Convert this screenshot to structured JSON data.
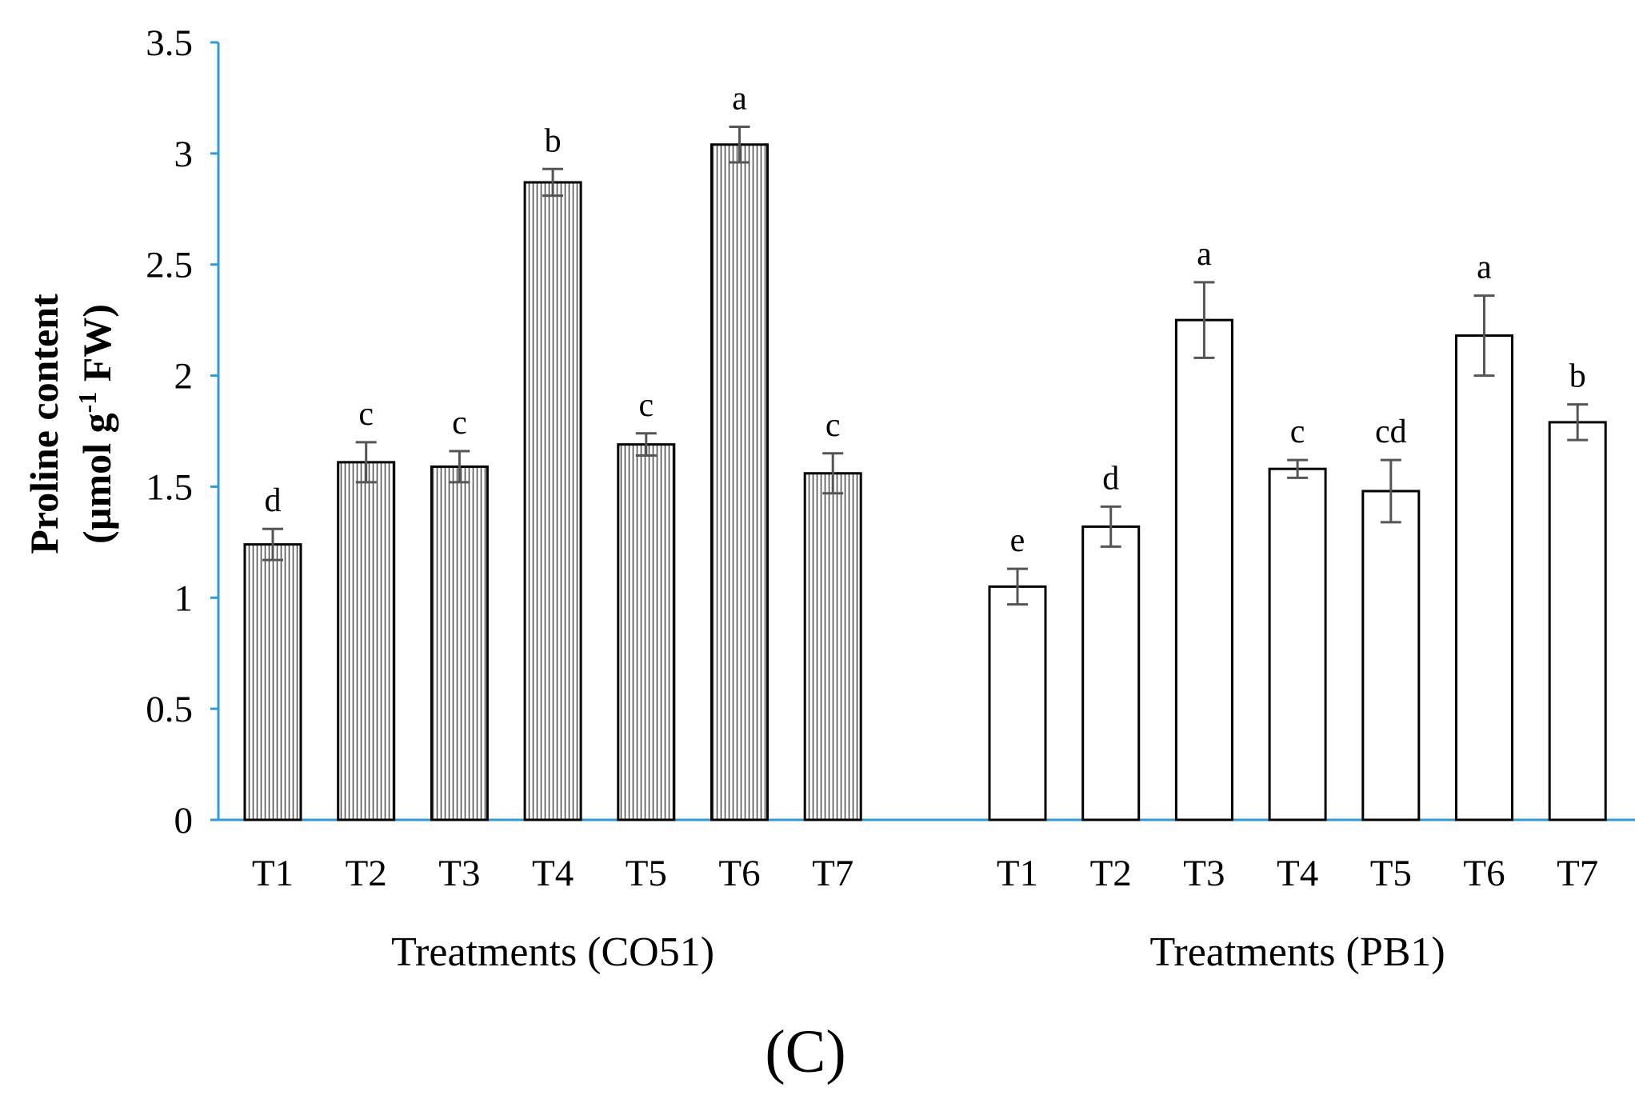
{
  "chart_data": {
    "type": "bar",
    "ylabel_line1": "Proline content",
    "ylabel_line2_prefix": "(µmol g",
    "ylabel_superscript": "-1",
    "ylabel_line2_suffix": " FW)",
    "ylim": [
      0,
      3.5
    ],
    "yticks": [
      "0",
      "0.5",
      "1",
      "1.5",
      "2",
      "2.5",
      "3",
      "3.5"
    ],
    "panel_label": "(C)",
    "groups": [
      {
        "name": "Treatments (CO51)",
        "fill": "hatched",
        "categories": [
          "T1",
          "T2",
          "T3",
          "T4",
          "T5",
          "T6",
          "T7"
        ],
        "values": [
          1.24,
          1.61,
          1.59,
          2.87,
          1.69,
          3.04,
          1.56
        ],
        "errors": [
          0.07,
          0.09,
          0.07,
          0.06,
          0.05,
          0.08,
          0.09
        ],
        "letters": [
          "d",
          "c",
          "c",
          "b",
          "c",
          "a",
          "c"
        ]
      },
      {
        "name": "Treatments (PB1)",
        "fill": "white",
        "categories": [
          "T1",
          "T2",
          "T3",
          "T4",
          "T5",
          "T6",
          "T7"
        ],
        "values": [
          1.05,
          1.32,
          2.25,
          1.58,
          1.48,
          2.18,
          1.79
        ],
        "errors": [
          0.08,
          0.09,
          0.17,
          0.04,
          0.14,
          0.18,
          0.08
        ],
        "letters": [
          "e",
          "d",
          "a",
          "c",
          "cd",
          "a",
          "b"
        ]
      }
    ],
    "colors": {
      "axis": "#2e9bd6",
      "bar_stroke": "#000000",
      "error_bar": "#555555",
      "hatch": "#555555"
    }
  }
}
